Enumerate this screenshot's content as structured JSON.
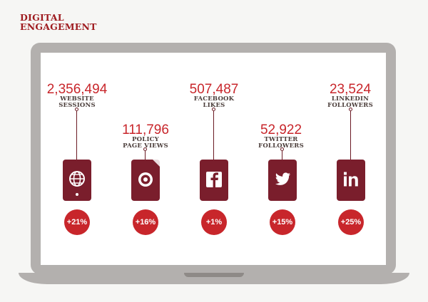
{
  "title": {
    "line1": "DIGITAL",
    "line2": "ENGAGEMENT"
  },
  "colors": {
    "accent": "#c8262b",
    "device": "#7a1e2c",
    "laptop": "#b3b0ae"
  },
  "metrics": [
    {
      "value": "2,356,494",
      "label1": "WEBSITE",
      "label2": "SESSIONS",
      "icon": "globe-icon",
      "change": "+21%"
    },
    {
      "value": "111,796",
      "label1": "POLICY",
      "label2": "PAGE VIEWS",
      "icon": "document-icon",
      "change": "+16%"
    },
    {
      "value": "507,487",
      "label1": "FACEBOOK",
      "label2": "LIKES",
      "icon": "facebook-icon",
      "change": "+1%"
    },
    {
      "value": "52,922",
      "label1": "TWITTER",
      "label2": "FOLLOWERS",
      "icon": "twitter-icon",
      "change": "+15%"
    },
    {
      "value": "23,524",
      "label1": "LINKEDIN",
      "label2": "FOLLOWERS",
      "icon": "linkedin-icon",
      "change": "+25%"
    }
  ]
}
